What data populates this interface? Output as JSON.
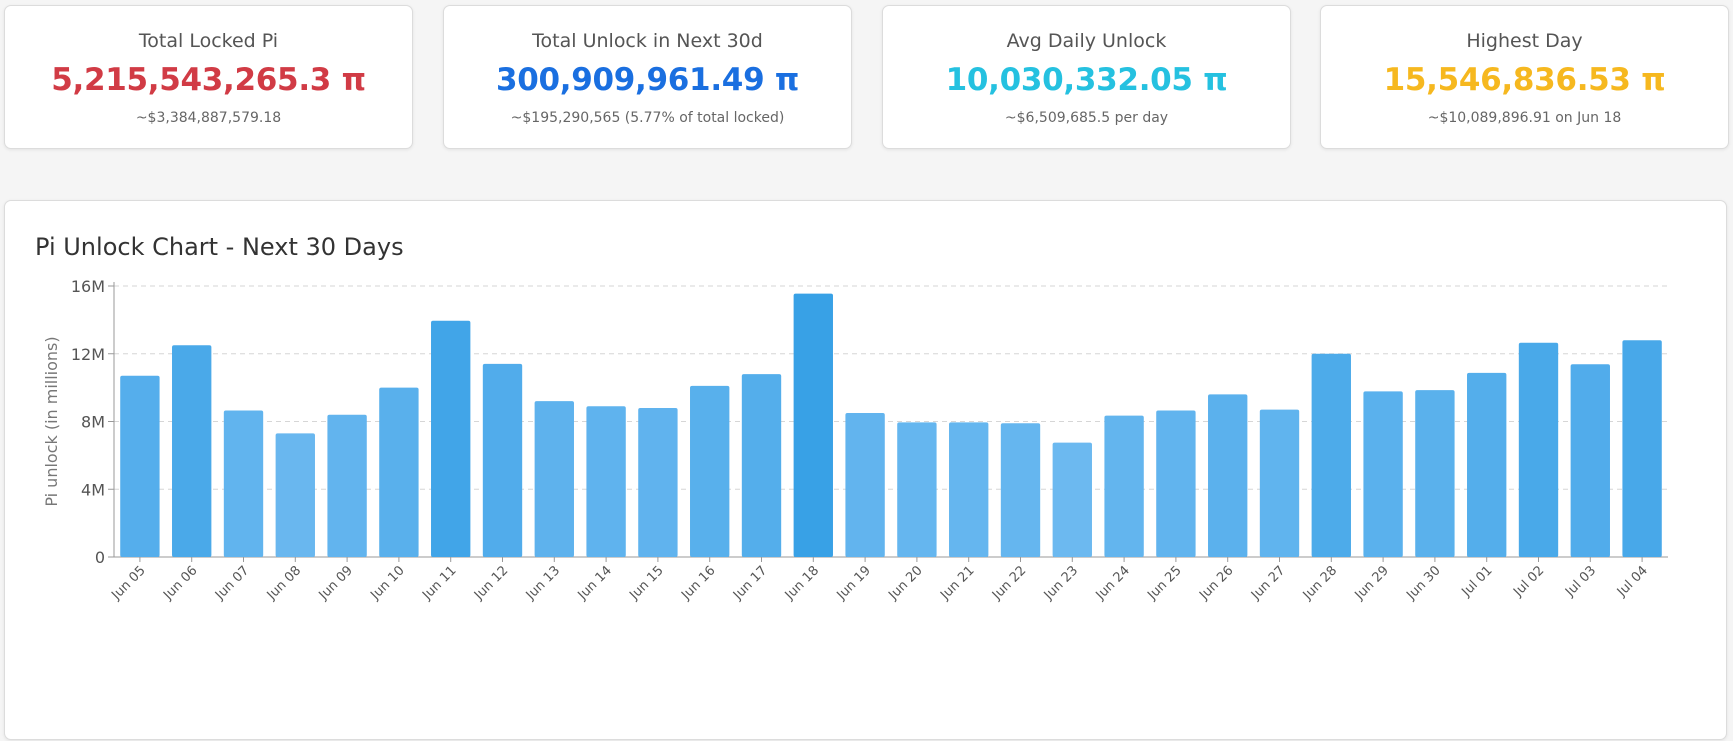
{
  "stats": [
    {
      "title": "Total Locked Pi",
      "value": "5,215,543,265.3 π",
      "sub": "~$3,384,887,579.18",
      "color": "#d13b45"
    },
    {
      "title": "Total Unlock in Next 30d",
      "value": "300,909,961.49 π",
      "sub": "~$195,290,565 (5.77% of total locked)",
      "color": "#1a6fe0"
    },
    {
      "title": "Avg Daily Unlock",
      "value": "10,030,332.05 π",
      "sub": "~$6,509,685.5 per day",
      "color": "#25c1e0"
    },
    {
      "title": "Highest Day",
      "value": "15,546,836.53 π",
      "sub": "~$10,089,896.91 on Jun 18",
      "color": "#f6b81f"
    }
  ],
  "chart": {
    "title": "Pi Unlock Chart - Next 30 Days"
  },
  "chart_data": {
    "type": "bar",
    "title": "Pi Unlock Chart - Next 30 Days",
    "xlabel": "",
    "ylabel": "Pi unlock (in millions)",
    "ylim": [
      0,
      16000000
    ],
    "yticks": [
      0,
      4000000,
      8000000,
      12000000,
      16000000
    ],
    "ytick_labels": [
      "0",
      "4M",
      "8M",
      "12M",
      "16M"
    ],
    "grid": true,
    "categories": [
      "Jun 05",
      "Jun 06",
      "Jun 07",
      "Jun 08",
      "Jun 09",
      "Jun 10",
      "Jun 11",
      "Jun 12",
      "Jun 13",
      "Jun 14",
      "Jun 15",
      "Jun 16",
      "Jun 17",
      "Jun 18",
      "Jun 19",
      "Jun 20",
      "Jun 21",
      "Jun 22",
      "Jun 23",
      "Jun 24",
      "Jun 25",
      "Jun 26",
      "Jun 27",
      "Jun 28",
      "Jun 29",
      "Jun 30",
      "Jul 01",
      "Jul 02",
      "Jul 03",
      "Jul 04"
    ],
    "values": [
      10700000,
      12500000,
      8650000,
      7300000,
      8400000,
      10000000,
      13950000,
      11400000,
      9200000,
      8900000,
      8800000,
      10100000,
      10800000,
      15546836.53,
      8500000,
      7950000,
      7950000,
      7900000,
      6750000,
      8350000,
      8650000,
      9600000,
      8700000,
      12000000,
      9780000,
      9850000,
      10870000,
      12650000,
      11380000,
      12800000
    ],
    "bar_color_light": "#6cb9f0",
    "bar_color_dark": "#38a1e6"
  }
}
